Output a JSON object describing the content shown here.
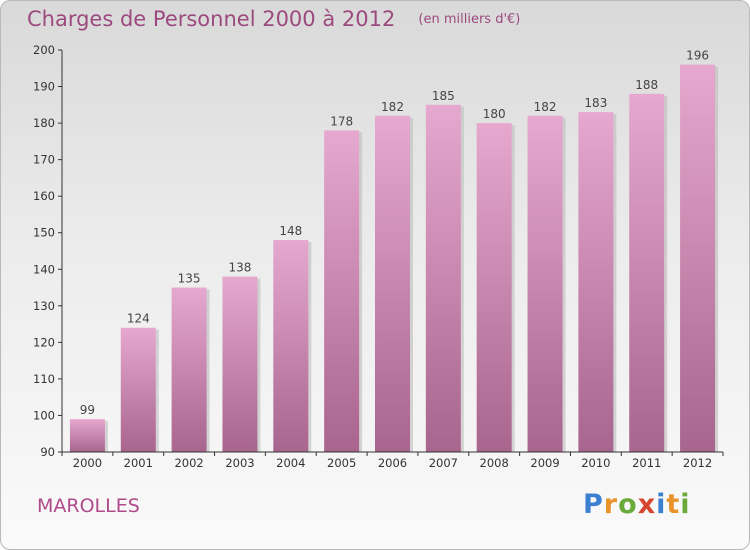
{
  "header": {
    "title": "Charges de Personnel 2000 à 2012",
    "subtitle": "(en milliers d'€)"
  },
  "town": "MAROLLES",
  "logo": {
    "text": "Proxiti",
    "letters": [
      "P",
      "r",
      "o",
      "x",
      "i",
      "t",
      "i"
    ],
    "colors": [
      "#3a7fd0",
      "#e8942a",
      "#6aaa3a",
      "#d6462e",
      "#3a7fd0",
      "#e8942a",
      "#6aaa3a"
    ]
  },
  "colors": {
    "bar_top": "#e6a8cf",
    "bar_bottom": "#a8658e",
    "text": "#9c4a7e",
    "axis": "#333333"
  },
  "chart_data": {
    "type": "bar",
    "categories": [
      "2000",
      "2001",
      "2002",
      "2003",
      "2004",
      "2005",
      "2006",
      "2007",
      "2008",
      "2009",
      "2010",
      "2011",
      "2012"
    ],
    "values": [
      99,
      124,
      135,
      138,
      148,
      178,
      182,
      185,
      180,
      182,
      183,
      188,
      196
    ],
    "ylim": [
      90,
      200
    ],
    "yticks": [
      90,
      100,
      110,
      120,
      130,
      140,
      150,
      160,
      170,
      180,
      190,
      200
    ],
    "grid": false,
    "data_labels": true
  }
}
